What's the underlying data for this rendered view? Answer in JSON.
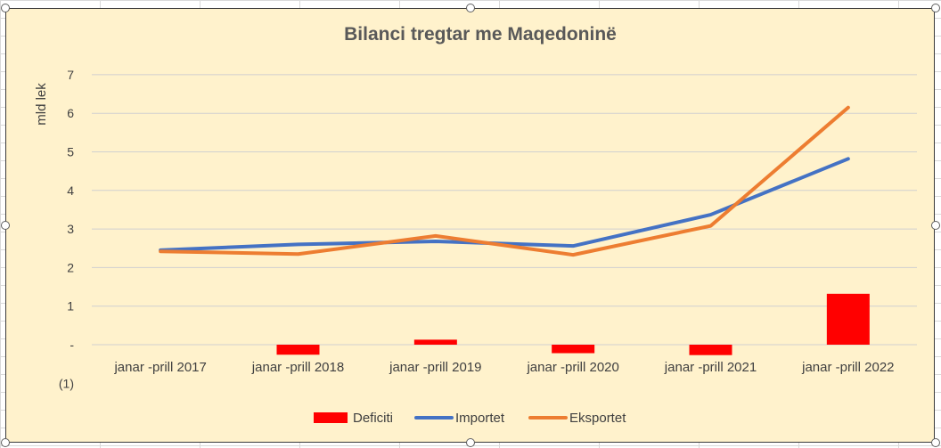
{
  "chart_data": {
    "type": "bar+line",
    "title": "Bilanci tregtar me Maqedoninë",
    "ylabel": "mld lek",
    "xlabel": "",
    "categories": [
      "janar -prill 2017",
      "janar -prill 2018",
      "janar -prill 2019",
      "janar -prill 2020",
      "janar -prill 2021",
      "janar -prill 2022"
    ],
    "ylim": [
      -1,
      7
    ],
    "yticks": [
      -1,
      0,
      1,
      2,
      3,
      4,
      5,
      6,
      7
    ],
    "ytick_labels": [
      "(1)",
      "-",
      "1",
      "2",
      "3",
      "4",
      "5",
      "6",
      "7"
    ],
    "grid": "horizontal",
    "legend_position": "bottom",
    "series": [
      {
        "name": "Deficiti",
        "type": "bar",
        "color": "#ff0000",
        "values": [
          0.0,
          -0.26,
          0.13,
          -0.22,
          -0.27,
          1.32
        ]
      },
      {
        "name": "Importet",
        "type": "line",
        "color": "#4472c4",
        "values": [
          2.45,
          2.6,
          2.68,
          2.56,
          3.37,
          4.82
        ]
      },
      {
        "name": "Eksportet",
        "type": "line",
        "color": "#ed7d31",
        "values": [
          2.42,
          2.35,
          2.82,
          2.33,
          3.08,
          6.15
        ]
      }
    ]
  }
}
